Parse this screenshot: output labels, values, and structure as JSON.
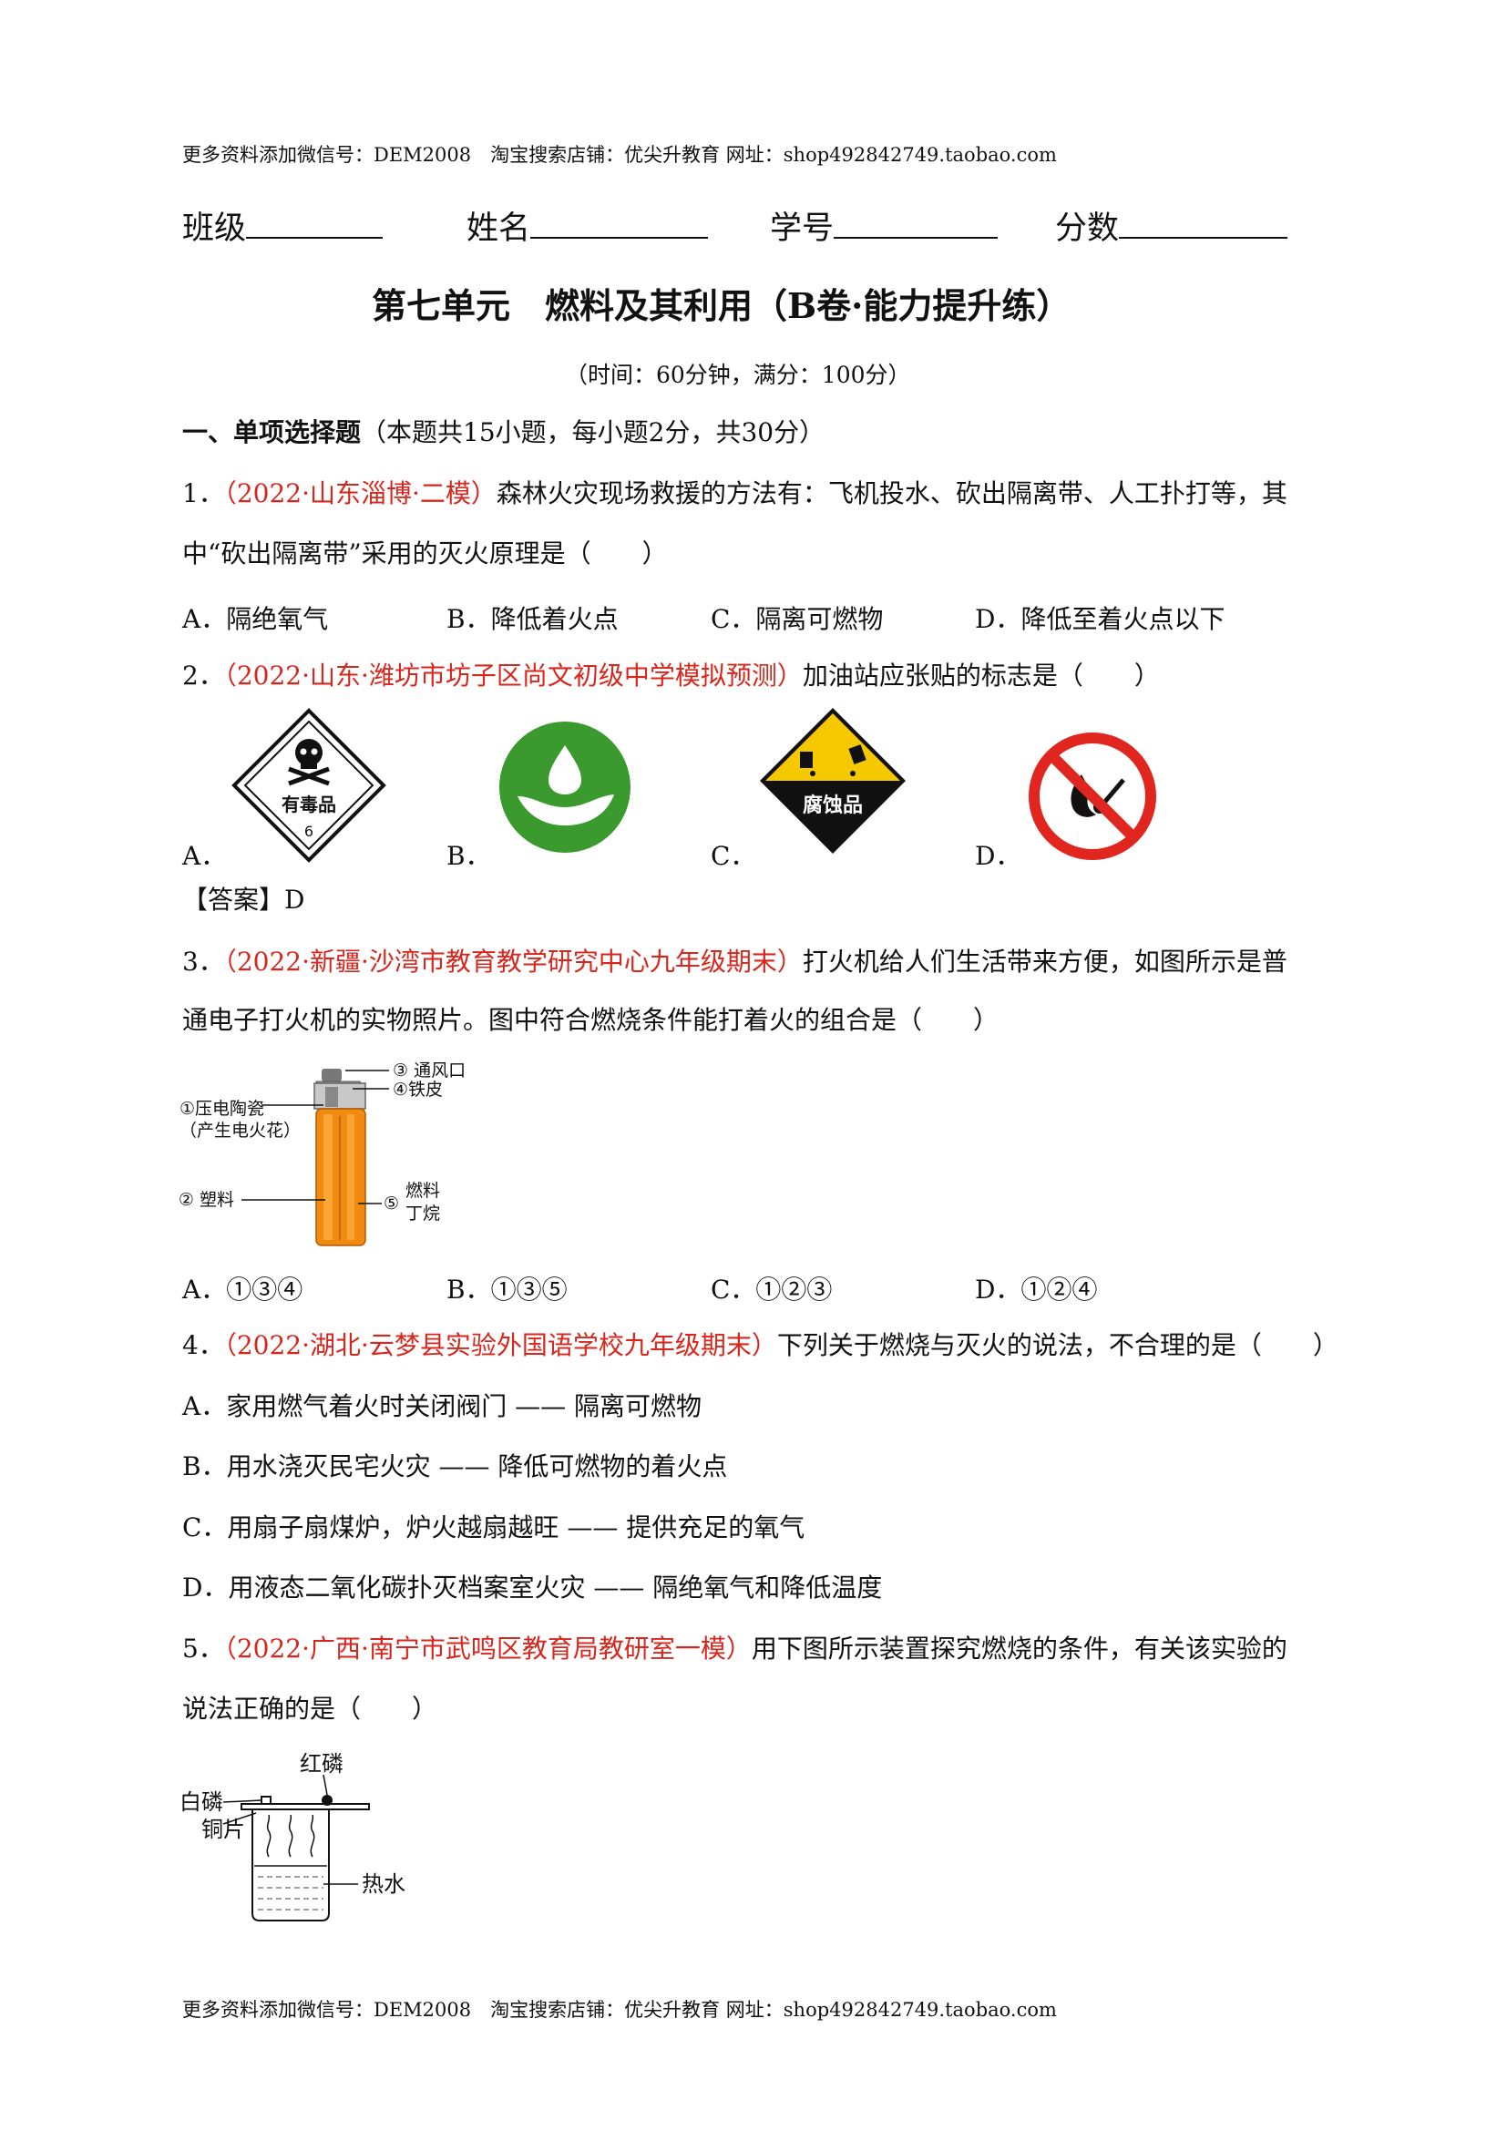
{
  "header": "更多资料添加微信号：DEM2008　淘宝搜索店铺：优尖升教育  网址：shop492842749.taobao.com",
  "footer": "更多资料添加微信号：DEM2008　淘宝搜索店铺：优尖升教育  网址：shop492842749.taobao.com",
  "info": {
    "class": "班级",
    "name": "姓名",
    "number": "学号",
    "score": "分数"
  },
  "title": "第七单元　燃料及其利用（B卷·能力提升练）",
  "subtitle": "（时间：60分钟，满分：100分）",
  "section": {
    "head": "一、单项选择题",
    "rest": "（本题共15小题，每小题2分，共30分）"
  },
  "q1": {
    "num": "1．",
    "src": "（2022·山东淄博·二模）",
    "text1": "森林火灾现场救援的方法有：飞机投水、砍出隔离带、人工扑打等，其",
    "text2": "中“砍出隔离带”采用的灭火原理是（　　）",
    "options": [
      "A．隔绝氧气",
      "B．降低着火点",
      "C．隔离可燃物",
      "D．降低至着火点以下"
    ]
  },
  "q2": {
    "num": "2．",
    "src": "（2022·山东·潍坊市坊子区尚文初级中学模拟预测）",
    "text": "加油站应张贴的标志是（　　）",
    "options": [
      "A．",
      "B．",
      "C．",
      "D．"
    ],
    "sign_a_text": "有毒品",
    "sign_a_num": "6",
    "sign_c_text": "腐蚀品",
    "answer": "【答案】D"
  },
  "q3": {
    "num": "3．",
    "src": "（2022·新疆·沙湾市教育教学研究中心九年级期末）",
    "text1": "打火机给人们生活带来方便，如图所示是普",
    "text2": "通电子打火机的实物照片。图中符合燃烧条件能打着火的组合是（　　）",
    "labels": [
      "③ 通风口",
      "④铁皮",
      "①压电陶瓷",
      "（产生电火花）",
      "② 塑料",
      "⑤",
      "燃料",
      "丁烷"
    ],
    "options": [
      "A．①③④",
      "B．①③⑤",
      "C．①②③",
      "D．①②④"
    ]
  },
  "q4": {
    "num": "4．",
    "src": "（2022·湖北·云梦县实验外国语学校九年级期末）",
    "text": "下列关于燃烧与灭火的说法，不合理的是（　　）",
    "options": [
      "A．家用燃气着火时关闭阀门 —— 隔离可燃物",
      "B．用水浇灭民宅火灾 —— 降低可燃物的着火点",
      "C．用扇子扇煤炉，炉火越扇越旺 —— 提供充足的氧气",
      "D．用液态二氧化碳扑灭档案室火灾 —— 隔绝氧气和降低温度"
    ]
  },
  "q5": {
    "num": "5．",
    "src": "（2022·广西·南宁市武鸣区教育局教研室一模）",
    "text1": "用下图所示装置探究燃烧的条件，有关该实验的",
    "text2": "说法正确的是（　　）",
    "labels": [
      "红磷",
      "白磷",
      "铜片",
      "热水"
    ]
  },
  "colors": {
    "red": "#d9261c",
    "green": "#3a9a2e",
    "yellow": "#f5c800",
    "prohibit": "#e0261f",
    "orange": "#f08a10"
  }
}
